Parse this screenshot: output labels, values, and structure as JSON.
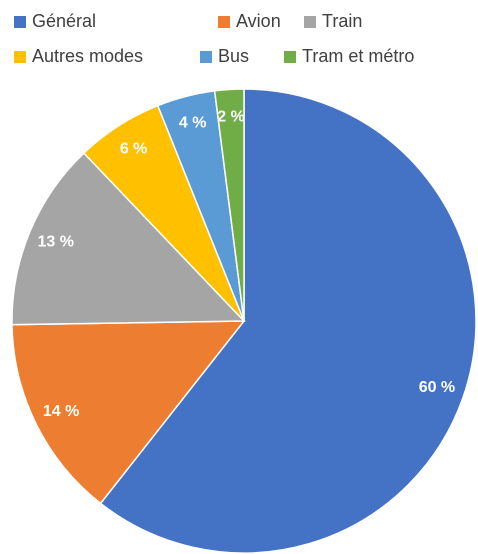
{
  "chart_data": {
    "type": "pie",
    "categories": [
      "Général",
      "Avion",
      "Train",
      "Autres modes",
      "Bus",
      "Tram et métro"
    ],
    "values": [
      60,
      14,
      13,
      6,
      4,
      2
    ],
    "value_labels": [
      "60 %",
      "14 %",
      "13 %",
      "6 %",
      "4 %",
      "2 %"
    ],
    "colors": [
      "#4472c4",
      "#ed7d31",
      "#a5a5a5",
      "#ffc000",
      "#5b9bd5",
      "#70ad47"
    ]
  }
}
